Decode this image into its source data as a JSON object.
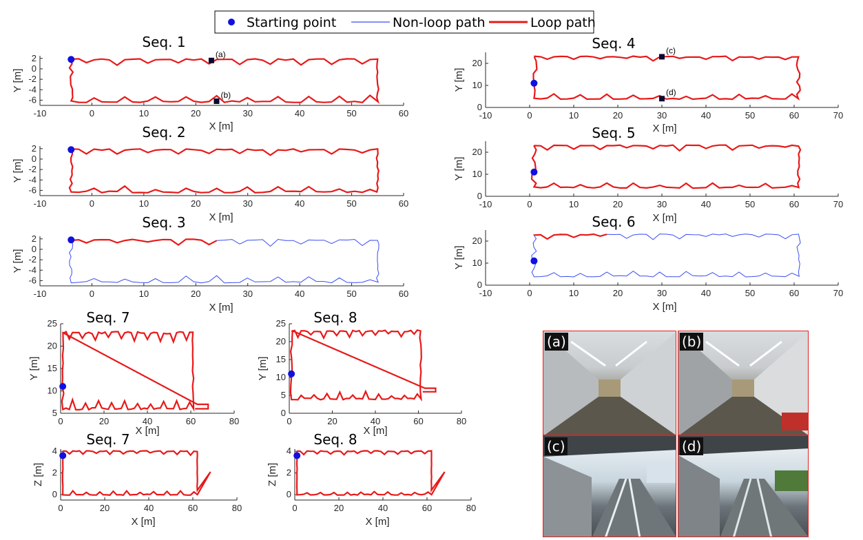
{
  "legend": [
    {
      "label": "Starting point",
      "kind": "marker",
      "color": "#1010e0"
    },
    {
      "label": "Non-loop path",
      "kind": "line",
      "color": "#3a4cf0"
    },
    {
      "label": "Loop path",
      "kind": "line",
      "color": "#e81818"
    }
  ],
  "colors": {
    "loop": "#e81818",
    "nonloop": "#3a4cf0",
    "start": "#1010e0",
    "marker": "#0a0a30"
  },
  "chart_data": [
    {
      "id": "seq1",
      "type": "line",
      "title": "Seq. 1",
      "xlabel": "X [m]",
      "ylabel": "Y [m]",
      "xlim": [
        -10,
        60
      ],
      "ylim": [
        -7,
        2.5
      ],
      "xticks": [
        "-10",
        "0",
        "10",
        "20",
        "30",
        "40",
        "50",
        "60"
      ],
      "yticks": [
        "2",
        "0",
        "-2",
        "-4",
        "-6"
      ],
      "start": [
        -4,
        1.8
      ],
      "markers": [
        {
          "label": "(a)",
          "x": 23,
          "y": 1.6
        },
        {
          "label": "(b)",
          "x": 24,
          "y": -6.2
        }
      ],
      "loop_coverage": 1.0
    },
    {
      "id": "seq2",
      "type": "line",
      "title": "Seq. 2",
      "xlabel": "X [m]",
      "ylabel": "Y [m]",
      "xlim": [
        -10,
        60
      ],
      "ylim": [
        -7,
        2.5
      ],
      "xticks": [
        "-10",
        "0",
        "10",
        "20",
        "30",
        "40",
        "50",
        "60"
      ],
      "yticks": [
        "2",
        "0",
        "-2",
        "-4",
        "-6"
      ],
      "start": [
        -4,
        1.8
      ],
      "markers": [],
      "loop_coverage": 1.0
    },
    {
      "id": "seq3",
      "type": "line",
      "title": "Seq. 3",
      "xlabel": "X [m]",
      "ylabel": "Y [m]",
      "xlim": [
        -10,
        60
      ],
      "ylim": [
        -7,
        2.5
      ],
      "xticks": [
        "-10",
        "0",
        "10",
        "20",
        "30",
        "40",
        "50",
        "60"
      ],
      "yticks": [
        "2",
        "0",
        "-2",
        "-4",
        "-6"
      ],
      "start": [
        -4,
        1.8
      ],
      "markers": [],
      "loop_coverage": 0.2
    },
    {
      "id": "seq4",
      "type": "line",
      "title": "Seq. 4",
      "xlabel": "X [m]",
      "ylabel": "Y [m]",
      "xlim": [
        -10,
        70
      ],
      "ylim": [
        0,
        25
      ],
      "xticks": [
        "-10",
        "0",
        "10",
        "20",
        "30",
        "40",
        "50",
        "60",
        "70"
      ],
      "yticks": [
        "20",
        "10",
        "0"
      ],
      "start": [
        1,
        11
      ],
      "markers": [
        {
          "label": "(c)",
          "x": 30,
          "y": 23
        },
        {
          "label": "(d)",
          "x": 30,
          "y": 4
        }
      ],
      "loop_coverage": 1.0
    },
    {
      "id": "seq5",
      "type": "line",
      "title": "Seq. 5",
      "xlabel": "X [m]",
      "ylabel": "Y [m]",
      "xlim": [
        -10,
        70
      ],
      "ylim": [
        0,
        25
      ],
      "xticks": [
        "-10",
        "0",
        "10",
        "20",
        "30",
        "40",
        "50",
        "60",
        "70"
      ],
      "yticks": [
        "20",
        "10",
        "0"
      ],
      "start": [
        1,
        11
      ],
      "markers": [],
      "loop_coverage": 1.0
    },
    {
      "id": "seq6",
      "type": "line",
      "title": "Seq. 6",
      "xlabel": "X [m]",
      "ylabel": "Y [m]",
      "xlim": [
        -10,
        70
      ],
      "ylim": [
        0,
        25
      ],
      "xticks": [
        "-10",
        "0",
        "10",
        "20",
        "30",
        "40",
        "50",
        "60",
        "70"
      ],
      "yticks": [
        "20",
        "10",
        "0"
      ],
      "start": [
        1,
        11
      ],
      "markers": [],
      "loop_coverage": 0.12
    },
    {
      "id": "seq7xy",
      "type": "line",
      "title": "Seq. 7",
      "xlabel": "X [m]",
      "ylabel": "Y [m]",
      "xlim": [
        0,
        80
      ],
      "ylim": [
        5,
        25
      ],
      "xticks": [
        "0",
        "20",
        "40",
        "60",
        "80"
      ],
      "yticks": [
        "25",
        "20",
        "15",
        "10",
        "5"
      ],
      "start": [
        1,
        11
      ],
      "markers": [],
      "loop_coverage": 1.0
    },
    {
      "id": "seq8xy",
      "type": "line",
      "title": "Seq. 8",
      "xlabel": "X [m]",
      "ylabel": "Y [m]",
      "xlim": [
        0,
        80
      ],
      "ylim": [
        0,
        25
      ],
      "xticks": [
        "0",
        "20",
        "40",
        "60",
        "80"
      ],
      "yticks": [
        "25",
        "20",
        "15",
        "10",
        "5",
        "0"
      ],
      "start": [
        1,
        11
      ],
      "markers": [],
      "loop_coverage": 1.0
    },
    {
      "id": "seq7xz",
      "type": "line",
      "title": "Seq. 7",
      "xlabel": "X [m]",
      "ylabel": "Z [m]",
      "xlim": [
        0,
        80
      ],
      "ylim": [
        -0.5,
        4.2
      ],
      "xticks": [
        "0",
        "20",
        "40",
        "60",
        "80"
      ],
      "yticks": [
        "4",
        "2",
        "0"
      ],
      "start": [
        1,
        3.6
      ],
      "markers": [],
      "loop_coverage": 1.0
    },
    {
      "id": "seq8xz",
      "type": "line",
      "title": "Seq. 8",
      "xlabel": "X [m]",
      "ylabel": "Z [m]",
      "xlim": [
        0,
        80
      ],
      "ylim": [
        -0.5,
        4.2
      ],
      "xticks": [
        "0",
        "20",
        "40",
        "60",
        "80"
      ],
      "yticks": [
        "4",
        "2",
        "0"
      ],
      "start": [
        1,
        3.6
      ],
      "markers": [],
      "loop_coverage": 1.0
    }
  ],
  "photos": [
    {
      "label": "(a)",
      "scene": "indoor-corridor"
    },
    {
      "label": "(b)",
      "scene": "indoor-corridor"
    },
    {
      "label": "(c)",
      "scene": "outdoor-walkway"
    },
    {
      "label": "(d)",
      "scene": "outdoor-walkway"
    }
  ]
}
